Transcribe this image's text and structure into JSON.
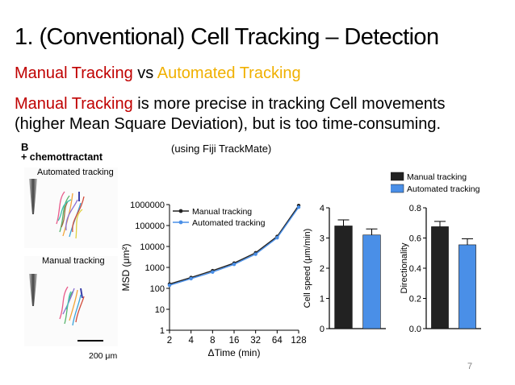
{
  "slide": {
    "title": "1.  (Conventional) Cell Tracking – Detection",
    "subtitle_manual": "Manual Tracking",
    "subtitle_vs": " vs ",
    "subtitle_auto": "Automated Tracking",
    "body_red": "Manual Tracking",
    "body_rest1": " is more precise in tracking Cell movements",
    "body_line2": "(higher Mean Square Deviation), but is too time-consuming.",
    "note": "(using Fiji TrackMate)",
    "page_number": "7"
  },
  "figure": {
    "panel_label": "B",
    "chemo_label": "+ chemottractant",
    "top_image_label": "Automated tracking",
    "bottom_image_label": "Manual tracking",
    "scale_bar_label": "200 μm"
  },
  "colors": {
    "manual": "#222222",
    "automated": "#4a8fe7",
    "title_red": "#c00000",
    "title_orange": "#f0b000"
  },
  "chart_data": [
    {
      "type": "line",
      "xlabel": "ΔTime (min)",
      "ylabel": "MSD (μm²)",
      "x_scale": "log2",
      "y_scale": "log10",
      "xticks": [
        "2",
        "4",
        "8",
        "16",
        "32",
        "64",
        "128"
      ],
      "yticks": [
        "1",
        "10",
        "100",
        "1000",
        "10000",
        "100000",
        "1000000"
      ],
      "xlim": [
        2,
        128
      ],
      "ylim": [
        1,
        1000000
      ],
      "legend_position": "top-left",
      "series": [
        {
          "name": "Manual tracking",
          "color": "#222222",
          "x": [
            2,
            4,
            8,
            16,
            32,
            64,
            128
          ],
          "y": [
            160,
            330,
            700,
            1600,
            5000,
            30000,
            900000
          ]
        },
        {
          "name": "Automated tracking",
          "color": "#4a8fe7",
          "x": [
            2,
            4,
            8,
            16,
            32,
            64,
            128
          ],
          "y": [
            140,
            290,
            600,
            1400,
            4300,
            26000,
            750000
          ]
        }
      ]
    },
    {
      "type": "bar",
      "ylabel": "Cell speed (μm/min)",
      "yticks": [
        "0",
        "1",
        "2",
        "3",
        "4"
      ],
      "ylim": [
        0,
        4
      ],
      "categories": [
        "Manual tracking",
        "Automated tracking"
      ],
      "values": [
        3.4,
        3.1
      ],
      "errors": [
        0.2,
        0.2
      ],
      "colors": [
        "#222222",
        "#4a8fe7"
      ]
    },
    {
      "type": "bar",
      "ylabel": "Directionality",
      "yticks": [
        "0.0",
        "0.2",
        "0.4",
        "0.6",
        "0.8"
      ],
      "ylim": [
        0,
        0.8
      ],
      "categories": [
        "Manual tracking",
        "Automated tracking"
      ],
      "values": [
        0.675,
        0.555
      ],
      "errors": [
        0.035,
        0.04
      ],
      "colors": [
        "#222222",
        "#4a8fe7"
      ],
      "legend": [
        "Manual tracking",
        "Automated tracking"
      ],
      "legend_position": "top"
    }
  ]
}
